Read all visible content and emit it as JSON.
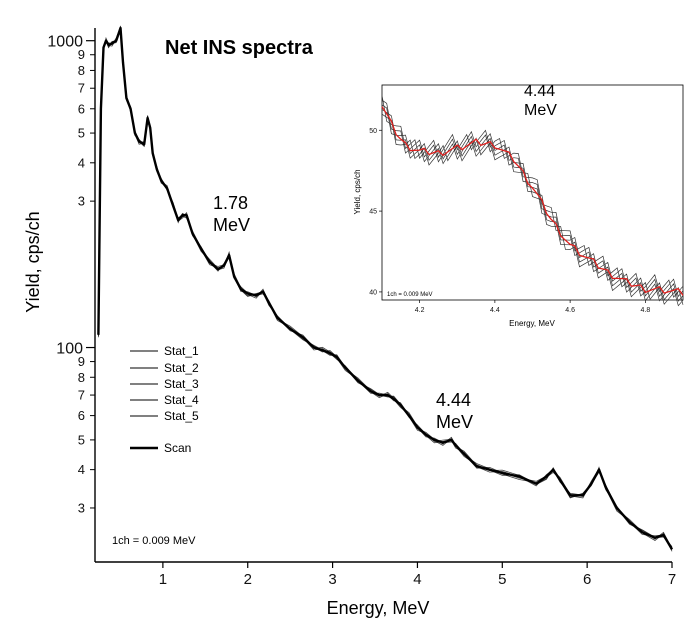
{
  "chart_data": [
    {
      "type": "line",
      "title": "Net INS spectra",
      "xlabel": "Energy, MeV",
      "ylabel": "Yield, cps/ch",
      "xlim": [
        0.2,
        7.0
      ],
      "ylim": [
        20,
        1100
      ],
      "yscale": "log",
      "grid": false,
      "legend_position": "bottom-left",
      "note": "1ch = 0.009 MeV",
      "x_ticks": [
        "1",
        "2",
        "3",
        "4",
        "5",
        "6",
        "7"
      ],
      "y_major_ticks": [
        "100",
        "1000"
      ],
      "y_minor_ticks": [
        "3",
        "4",
        "5",
        "6",
        "7",
        "8",
        "9"
      ],
      "annotations": [
        {
          "text": "1.78",
          "text2": "MeV",
          "x": 1.78
        },
        {
          "text": "4.44",
          "text2": "MeV",
          "x": 4.44
        }
      ],
      "legend": [
        "Stat_1",
        "Stat_2",
        "Stat_3",
        "Stat_4",
        "Stat_5",
        "Scan"
      ],
      "series": [
        {
          "name": "Scan",
          "x": [
            0.24,
            0.27,
            0.3,
            0.33,
            0.36,
            0.4,
            0.45,
            0.5,
            0.53,
            0.57,
            0.62,
            0.67,
            0.72,
            0.78,
            0.82,
            0.85,
            0.88,
            0.93,
            0.98,
            1.05,
            1.12,
            1.18,
            1.23,
            1.28,
            1.35,
            1.45,
            1.55,
            1.65,
            1.72,
            1.78,
            1.84,
            1.92,
            2.0,
            2.1,
            2.18,
            2.25,
            2.35,
            2.5,
            2.65,
            2.78,
            2.88,
            2.97,
            3.05,
            3.15,
            3.3,
            3.45,
            3.55,
            3.65,
            3.72,
            3.8,
            3.9,
            4.0,
            4.1,
            4.2,
            4.3,
            4.4,
            4.45,
            4.55,
            4.7,
            4.85,
            5.0,
            5.2,
            5.4,
            5.52,
            5.6,
            5.68,
            5.8,
            5.95,
            6.05,
            6.14,
            6.22,
            6.35,
            6.5,
            6.65,
            6.8,
            6.9,
            7.0
          ],
          "y": [
            110,
            600,
            950,
            1000,
            970,
            980,
            1000,
            1100,
            850,
            650,
            600,
            500,
            470,
            460,
            560,
            520,
            430,
            380,
            350,
            330,
            290,
            260,
            270,
            270,
            235,
            210,
            190,
            180,
            185,
            200,
            170,
            155,
            150,
            148,
            152,
            140,
            125,
            115,
            108,
            100,
            98,
            96,
            93,
            86,
            78,
            72,
            70,
            70,
            68,
            65,
            60,
            55,
            52,
            50,
            49,
            50,
            48,
            45,
            41,
            40,
            39,
            38,
            36,
            38,
            40,
            37,
            33,
            33,
            36,
            40,
            35,
            30,
            27,
            25,
            24,
            24.5,
            22
          ]
        }
      ]
    },
    {
      "type": "line",
      "title": "",
      "xlabel": "Energy, MeV",
      "ylabel": "Yield, cps/ch",
      "xlim": [
        4.1,
        4.9
      ],
      "ylim": [
        39.5,
        52.8
      ],
      "grid": false,
      "note": "1ch = 0.009 MeV",
      "annotation": {
        "text": "4.44",
        "text2": "MeV"
      },
      "x_ticks": [
        "4.2",
        "4.4",
        "4.6",
        "4.8"
      ],
      "y_ticks": [
        "40",
        "45",
        "50"
      ],
      "series": [
        {
          "name": "Scan",
          "color": "#e0201e",
          "x": [
            4.1,
            4.13,
            4.16,
            4.2,
            4.25,
            4.3,
            4.35,
            4.4,
            4.45,
            4.5,
            4.55,
            4.6,
            4.65,
            4.7,
            4.75,
            4.8,
            4.85,
            4.9
          ],
          "y": [
            51.5,
            50.1,
            49.1,
            48.7,
            48.6,
            48.9,
            49.2,
            49.1,
            48.2,
            46.5,
            44.5,
            42.9,
            42.0,
            41.2,
            40.6,
            40.2,
            40.1,
            39.9
          ]
        }
      ]
    }
  ]
}
